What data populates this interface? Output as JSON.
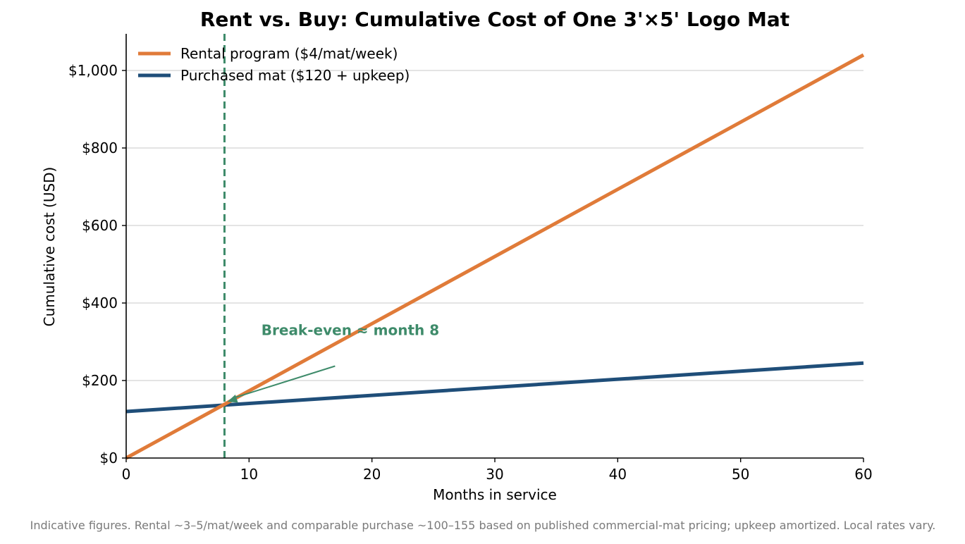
{
  "chart_data": {
    "type": "line",
    "title": "Rent vs. Buy: Cumulative Cost of One 3'×5' Logo Mat",
    "xlabel": "Months in service",
    "ylabel": "Cumulative cost (USD)",
    "xlim": [
      0,
      60
    ],
    "ylim": [
      0,
      1100
    ],
    "xticks": [
      0,
      10,
      20,
      30,
      40,
      50,
      60
    ],
    "xtick_labels": [
      "0",
      "10",
      "20",
      "30",
      "40",
      "50",
      "60"
    ],
    "yticks": [
      0,
      200,
      400,
      600,
      800,
      1000
    ],
    "ytick_labels": [
      "$0",
      "$200",
      "$400",
      "$600",
      "$800",
      "$1,000"
    ],
    "grid": "horizontal",
    "legend_position": "top-left",
    "series": [
      {
        "name": "Rental program ($4/mat/week)",
        "color": "#e07b39",
        "x": [
          0,
          60
        ],
        "y": [
          0,
          1040
        ]
      },
      {
        "name": "Purchased mat ($120 + upkeep)",
        "color": "#1f4e79",
        "x": [
          0,
          60
        ],
        "y": [
          120,
          245
        ]
      }
    ],
    "reference_lines": [
      {
        "axis": "x",
        "value": 8,
        "style": "dashed",
        "color": "#3e8b6a"
      }
    ],
    "annotations": [
      {
        "text": "Break-even ≈ month 8",
        "point": [
          8,
          138
        ],
        "text_at": [
          11,
          330
        ],
        "color": "#3e8b6a"
      }
    ],
    "footnote": "Indicative figures. Rental ~3–5/mat/week and comparable purchase ~100–155 based on published commercial-mat pricing; upkeep amortized. Local rates vary."
  }
}
